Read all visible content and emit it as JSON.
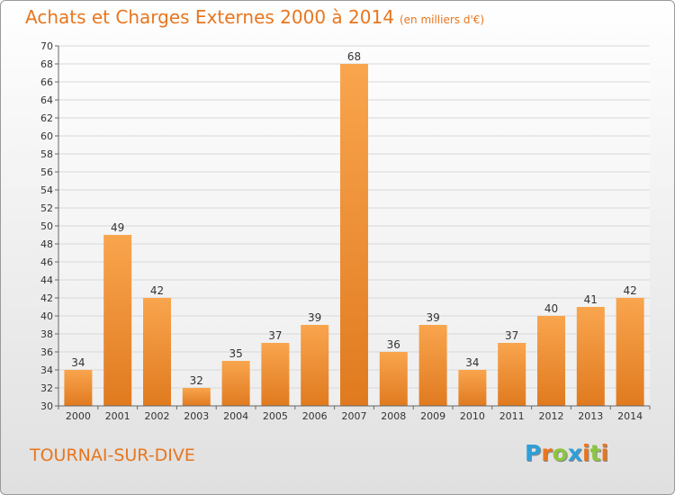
{
  "title": "Achats et Charges Externes 2000 à 2014",
  "unit": "(en milliers d'€)",
  "commune": "TOURNAI-SUR-DIVE",
  "logo": {
    "letters": [
      "P",
      "r",
      "o",
      "x",
      "i",
      "t",
      "i"
    ],
    "colors": [
      "#2f9fd8",
      "#e8761e",
      "#8cc63f",
      "#2f9fd8",
      "#e8761e",
      "#8cc63f",
      "#e8761e"
    ]
  },
  "colors": {
    "accent": "#e8761e",
    "bar_top": "#f9a54e",
    "bar_bottom": "#e07a1f",
    "grid": "#d8d8d8",
    "axis": "#555555",
    "text": "#333333"
  },
  "chart_data": {
    "type": "bar",
    "title": "Achats et Charges Externes 2000 à 2014",
    "ylabel": "",
    "xlabel": "",
    "categories": [
      "2000",
      "2001",
      "2002",
      "2003",
      "2004",
      "2005",
      "2006",
      "2007",
      "2008",
      "2009",
      "2010",
      "2011",
      "2012",
      "2013",
      "2014"
    ],
    "values": [
      34,
      49,
      42,
      32,
      35,
      37,
      39,
      68,
      36,
      39,
      34,
      37,
      40,
      41,
      42
    ],
    "ylim": [
      30,
      70
    ],
    "ytick_step": 2,
    "grid": true,
    "legend": "none"
  }
}
